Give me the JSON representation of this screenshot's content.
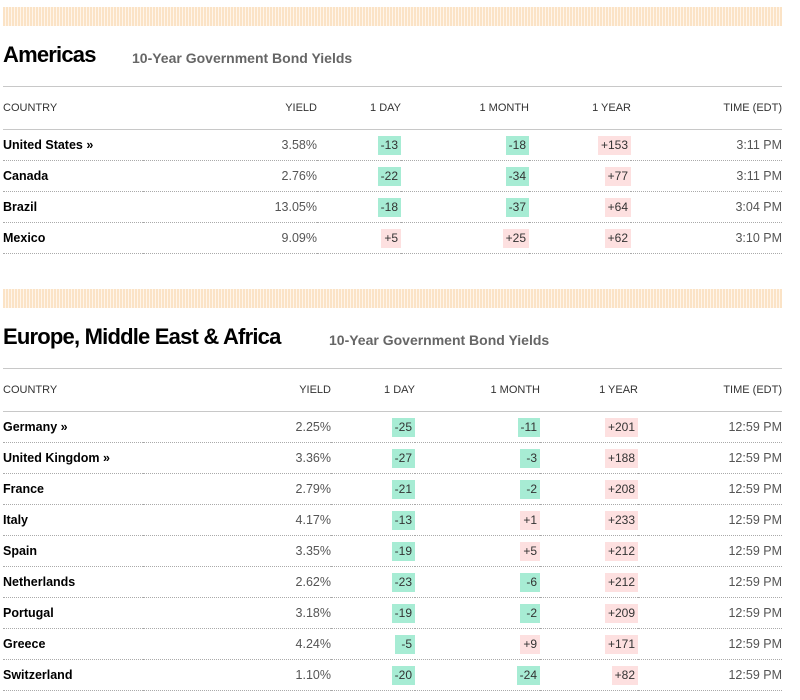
{
  "colors": {
    "negative_bg": "#a7ecd4",
    "positive_bg": "#fde0e0",
    "band": "#fbe3c6"
  },
  "columns": [
    "COUNTRY",
    "YIELD",
    "1 DAY",
    "1 MONTH",
    "1 YEAR",
    "TIME (EDT)"
  ],
  "americas": {
    "title": "Americas",
    "subtitle": "10-Year Government Bond Yields",
    "rows": [
      {
        "country": "United States »",
        "yield": "3.58%",
        "day": "-13",
        "month": "-18",
        "year": "+153",
        "time": "3:11 PM"
      },
      {
        "country": "Canada",
        "yield": "2.76%",
        "day": "-22",
        "month": "-34",
        "year": "+77",
        "time": "3:11 PM"
      },
      {
        "country": "Brazil",
        "yield": "13.05%",
        "day": "-18",
        "month": "-37",
        "year": "+64",
        "time": "3:04 PM"
      },
      {
        "country": "Mexico",
        "yield": "9.09%",
        "day": "+5",
        "month": "+25",
        "year": "+62",
        "time": "3:10 PM"
      }
    ]
  },
  "emea": {
    "title": "Europe, Middle East & Africa",
    "subtitle": "10-Year Government Bond Yields",
    "rows": [
      {
        "country": "Germany »",
        "yield": "2.25%",
        "day": "-25",
        "month": "-11",
        "year": "+201",
        "time": "12:59 PM"
      },
      {
        "country": "United Kingdom »",
        "yield": "3.36%",
        "day": "-27",
        "month": "-3",
        "year": "+188",
        "time": "12:59 PM"
      },
      {
        "country": "France",
        "yield": "2.79%",
        "day": "-21",
        "month": "-2",
        "year": "+208",
        "time": "12:59 PM"
      },
      {
        "country": "Italy",
        "yield": "4.17%",
        "day": "-13",
        "month": "+1",
        "year": "+233",
        "time": "12:59 PM"
      },
      {
        "country": "Spain",
        "yield": "3.35%",
        "day": "-19",
        "month": "+5",
        "year": "+212",
        "time": "12:59 PM"
      },
      {
        "country": "Netherlands",
        "yield": "2.62%",
        "day": "-23",
        "month": "-6",
        "year": "+212",
        "time": "12:59 PM"
      },
      {
        "country": "Portugal",
        "yield": "3.18%",
        "day": "-19",
        "month": "-2",
        "year": "+209",
        "time": "12:59 PM"
      },
      {
        "country": "Greece",
        "yield": "4.24%",
        "day": "-5",
        "month": "+9",
        "year": "+171",
        "time": "12:59 PM"
      },
      {
        "country": "Switzerland",
        "yield": "1.10%",
        "day": "-20",
        "month": "-24",
        "year": "+82",
        "time": "12:59 PM"
      }
    ]
  }
}
